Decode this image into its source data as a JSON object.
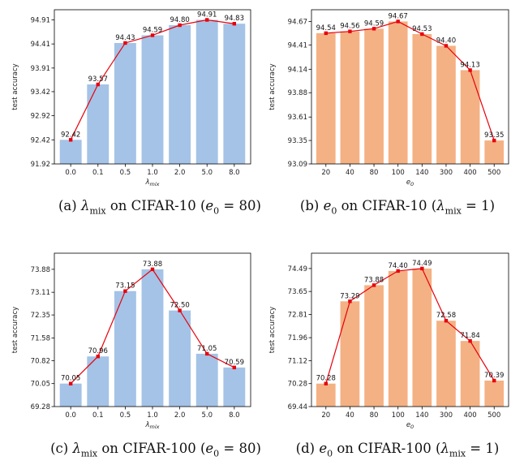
{
  "style": {
    "lambda_bar_color": "#a4c3e6",
    "e0_bar_color": "#f4b184",
    "line_color": "#e8000b"
  },
  "chart_data": [
    {
      "type": "bar",
      "panel": "a",
      "caption": {
        "label": "(a)",
        "greek": "λ",
        "sub": "mix",
        "text": " on CIFAR-10 (",
        "param": "e",
        "param_sub": "0",
        "eq": " = 80)"
      },
      "xlabel": "λmix",
      "ylabel": "test accuracy",
      "categories": [
        "0.0",
        "0.1",
        "0.5",
        "1.0",
        "2.0",
        "5.0",
        "8.0"
      ],
      "values": [
        92.42,
        93.57,
        94.43,
        94.59,
        94.8,
        94.91,
        94.83
      ],
      "value_labels": [
        "92.42",
        "93.57",
        "94.43",
        "94.59",
        "94.80",
        "94.91",
        "94.83"
      ],
      "yticks": [
        "91.92",
        "92.42",
        "92.92",
        "93.42",
        "93.91",
        "94.41",
        "94.91"
      ],
      "ylim": [
        91.92,
        95.12
      ],
      "overlay": "line-with-square-markers",
      "color_key": "lambda_bar_color"
    },
    {
      "type": "bar",
      "panel": "b",
      "caption": {
        "label": "(b)",
        "param": "e",
        "param_sub": "0",
        "text": " on CIFAR-10 (",
        "greek": "λ",
        "sub": "mix",
        "eq": " = 1)"
      },
      "xlabel": "e0",
      "ylabel": "test accuracy",
      "categories": [
        "20",
        "40",
        "80",
        "100",
        "140",
        "300",
        "400",
        "500"
      ],
      "values": [
        94.54,
        94.56,
        94.59,
        94.67,
        94.53,
        94.4,
        94.13,
        93.35
      ],
      "value_labels": [
        "94.54",
        "94.56",
        "94.59",
        "94.67",
        "94.53",
        "94.40",
        "94.13",
        "93.35"
      ],
      "yticks": [
        "93.09",
        "93.35",
        "93.61",
        "93.88",
        "94.14",
        "94.41",
        "94.67"
      ],
      "ylim": [
        93.09,
        94.8
      ],
      "overlay": "line-with-square-markers",
      "color_key": "e0_bar_color"
    },
    {
      "type": "bar",
      "panel": "c",
      "caption": {
        "label": "(c)",
        "greek": "λ",
        "sub": "mix",
        "text": " on CIFAR-100 (",
        "param": "e",
        "param_sub": "0",
        "eq": " = 80)"
      },
      "xlabel": "λmix",
      "ylabel": "test accuracy",
      "categories": [
        "0.0",
        "0.1",
        "0.5",
        "1.0",
        "2.0",
        "5.0",
        "8.0"
      ],
      "values": [
        70.05,
        70.96,
        73.15,
        73.88,
        72.5,
        71.05,
        70.59
      ],
      "value_labels": [
        "70.05",
        "70.96",
        "73.15",
        "73.88",
        "72.50",
        "71.05",
        "70.59"
      ],
      "yticks": [
        "69.28",
        "70.05",
        "70.82",
        "71.58",
        "72.35",
        "73.11",
        "73.88"
      ],
      "ylim": [
        69.28,
        74.42
      ],
      "overlay": "line-with-square-markers",
      "color_key": "lambda_bar_color"
    },
    {
      "type": "bar",
      "panel": "d",
      "caption": {
        "label": "(d)",
        "param": "e",
        "param_sub": "0",
        "text": " on CIFAR-100 (",
        "greek": "λ",
        "sub": "mix",
        "eq": " = 1)"
      },
      "xlabel": "e0",
      "ylabel": "test accuracy",
      "categories": [
        "20",
        "40",
        "80",
        "100",
        "140",
        "300",
        "400",
        "500"
      ],
      "values": [
        70.28,
        73.29,
        73.88,
        74.4,
        74.49,
        72.58,
        71.84,
        70.39
      ],
      "value_labels": [
        "70.28",
        "73.29",
        "73.88",
        "74.40",
        "74.49",
        "72.58",
        "71.84",
        "70.39"
      ],
      "yticks": [
        "69.44",
        "70.28",
        "71.12",
        "71.96",
        "72.81",
        "73.65",
        "74.49"
      ],
      "ylim": [
        69.44,
        75.05
      ],
      "overlay": "line-with-square-markers",
      "color_key": "e0_bar_color"
    }
  ]
}
